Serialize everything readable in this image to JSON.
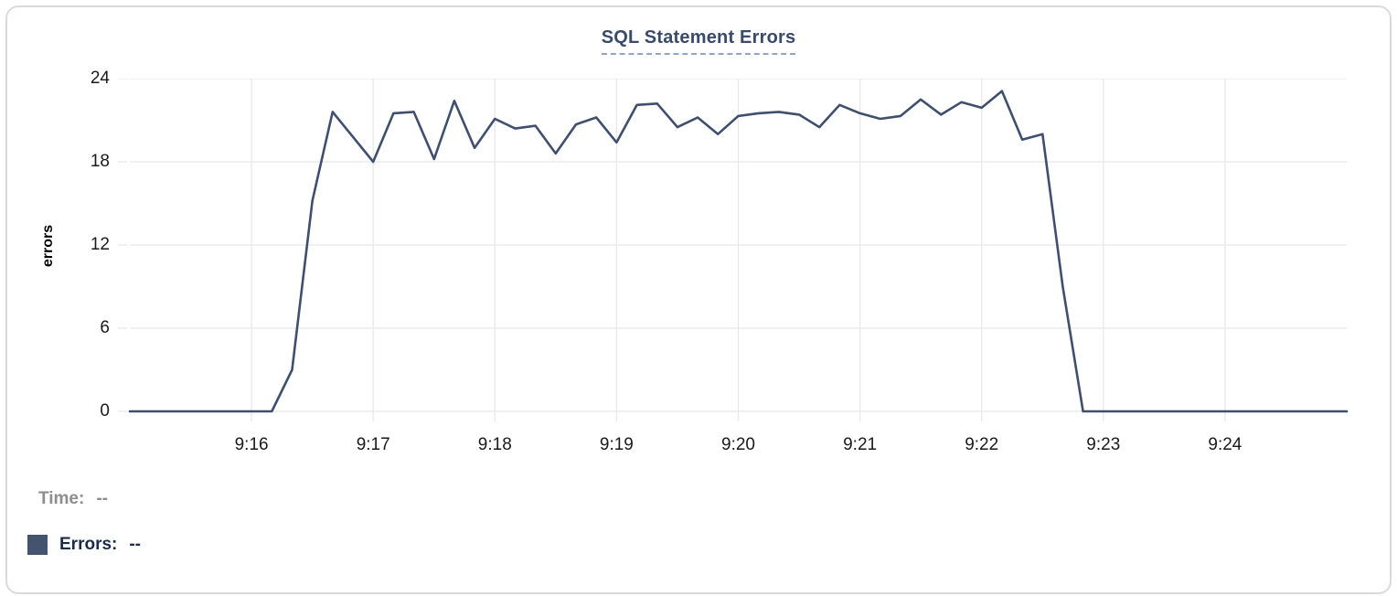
{
  "chart_data": {
    "type": "line",
    "title": "SQL Statement Errors",
    "xlabel": "",
    "ylabel": "errors",
    "ylim": [
      0,
      24
    ],
    "y_tick_values": [
      0,
      6,
      12,
      18,
      24
    ],
    "x_tick_labels": [
      "9:16",
      "9:17",
      "9:18",
      "9:19",
      "9:20",
      "9:21",
      "9:22",
      "9:23",
      "9:24"
    ],
    "x_tick_interval_seconds": 60,
    "x_domain_seconds": [
      0,
      600
    ],
    "x_start_time": "9:15",
    "x_end_time": "9:25",
    "x_sample_interval_seconds": 10,
    "grid": true,
    "legend_position": "bottom-left",
    "series": [
      {
        "name": "Errors",
        "color": "#404f6d",
        "values": [
          0,
          0,
          0,
          0,
          0,
          0,
          0,
          0,
          3,
          15.2,
          21.6,
          19.8,
          18,
          21.5,
          21.6,
          18.2,
          22.4,
          19,
          21.1,
          20.4,
          20.6,
          18.6,
          20.7,
          21.2,
          19.4,
          22.1,
          22.2,
          20.5,
          21.2,
          20,
          21.3,
          21.5,
          21.6,
          21.4,
          20.5,
          22.1,
          21.5,
          21.1,
          21.3,
          22.5,
          21.4,
          22.3,
          21.9,
          23.1,
          19.6,
          20,
          9,
          0,
          0,
          0,
          0,
          0,
          0,
          0,
          0,
          0,
          0,
          0,
          0,
          0,
          0
        ]
      }
    ]
  },
  "readout": {
    "time_label": "Time:",
    "time_value": "--",
    "errors_label": "Errors:",
    "errors_value": "--"
  },
  "colors": {
    "line": "#404f6d",
    "legend_marker": "#44536e",
    "title_text": "#3a4a6b",
    "title_underline": "#93a4c7",
    "grid": "#ebebeb",
    "axis_text": "#1a1a1a",
    "muted_text": "#8d8d8d",
    "dark_text": "#1d2b4a",
    "card_border": "#dadada"
  }
}
